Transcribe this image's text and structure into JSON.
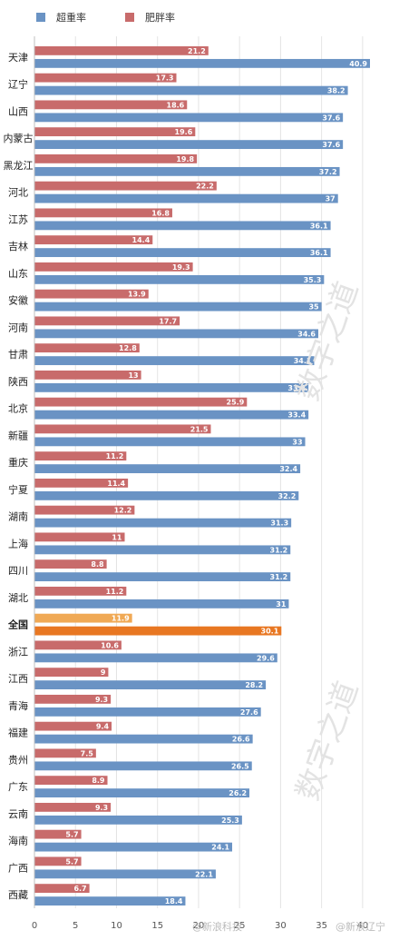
{
  "chart_data": {
    "type": "bar",
    "orientation": "horizontal",
    "categories": [
      "天津",
      "辽宁",
      "山西",
      "内蒙古",
      "黑龙江",
      "河北",
      "江苏",
      "吉林",
      "山东",
      "安徽",
      "河南",
      "甘肃",
      "陕西",
      "北京",
      "新疆",
      "重庆",
      "宁夏",
      "湖南",
      "上海",
      "四川",
      "湖北",
      "全国",
      "浙江",
      "江西",
      "青海",
      "福建",
      "贵州",
      "广东",
      "云南",
      "海南",
      "广西",
      "西藏"
    ],
    "series": [
      {
        "name": "超重率",
        "color": "#6a93c4",
        "values": [
          40.9,
          38.2,
          37.6,
          37.6,
          37.2,
          37,
          36.1,
          36.1,
          35.3,
          35,
          34.6,
          34.1,
          33.4,
          33.4,
          33,
          32.4,
          32.2,
          31.3,
          31.2,
          31.2,
          31,
          30.1,
          29.6,
          28.2,
          27.6,
          26.6,
          26.5,
          26.2,
          25.3,
          24.1,
          22.1,
          18.4
        ]
      },
      {
        "name": "肥胖率",
        "color": "#c86b6b",
        "values": [
          21.2,
          17.3,
          18.6,
          19.6,
          19.8,
          22.2,
          16.8,
          14.4,
          19.3,
          13.9,
          17.7,
          12.8,
          13,
          25.9,
          21.5,
          11.2,
          11.4,
          12.2,
          11,
          8.8,
          11.2,
          11.9,
          10.6,
          9,
          9.3,
          9.4,
          7.5,
          8.9,
          9.3,
          5.7,
          5.7,
          6.7
        ]
      }
    ],
    "highlight_category": "全国",
    "highlight_colors": {
      "超重率": "#e87722",
      "肥胖率": "#f0a955"
    },
    "xlim": [
      0,
      43
    ],
    "xticks": [
      0,
      5,
      10,
      15,
      20,
      25,
      30,
      35,
      40
    ],
    "grid": true,
    "legend_position": "top-left"
  },
  "watermarks": {
    "center_top": "数字之道",
    "center_bottom": "数字之道",
    "bottom_1": "@新浪科技",
    "bottom_2": "@新浪辽宁"
  }
}
